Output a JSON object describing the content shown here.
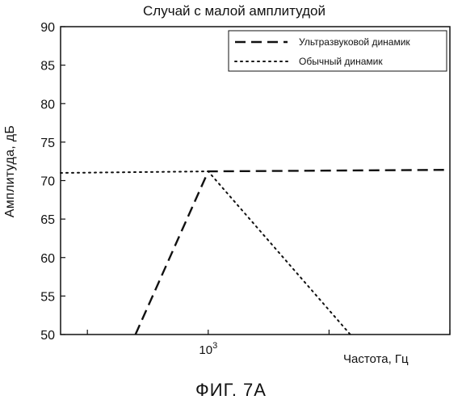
{
  "chart_data": {
    "type": "line",
    "title": "Случай с малой амплитудой",
    "xlabel": "Частота, Гц",
    "ylabel": "Амплитуда, дБ",
    "x_scale": "log",
    "x_tick_labels": [
      {
        "base": "10",
        "exp": "3",
        "x": 1000
      }
    ],
    "xlim": [
      60,
      100000
    ],
    "ylim": [
      50,
      90
    ],
    "yticks": [
      50,
      55,
      60,
      65,
      70,
      75,
      80,
      85,
      90
    ],
    "grid": false,
    "legend_position": "top-right",
    "series": [
      {
        "name": "Ультразвуковой динамик",
        "style": "dashed",
        "color": "#111111",
        "x": [
          250,
          1000,
          100000
        ],
        "y": [
          50,
          71.2,
          71.4
        ]
      },
      {
        "name": "Обычный динамик",
        "style": "dotted",
        "color": "#111111",
        "x": [
          60,
          1000,
          15000
        ],
        "y": [
          71,
          71.2,
          50
        ]
      }
    ]
  },
  "caption": "ФИГ. 7А"
}
